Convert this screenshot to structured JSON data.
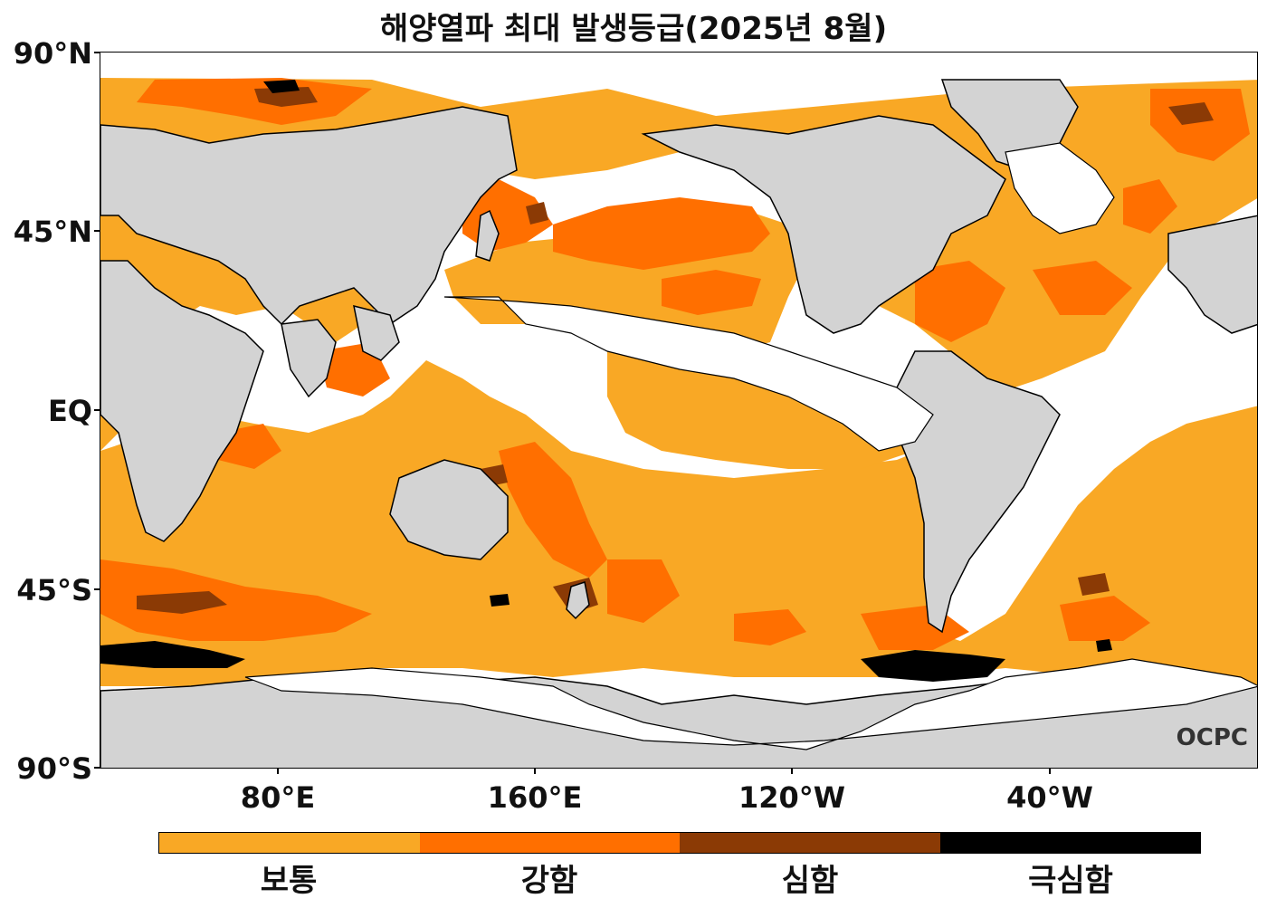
{
  "title": "해양열파 최대 발생등급(2025년 8월)",
  "lat_labels": [
    "90°N",
    "45°N",
    "EQ",
    "45°S",
    "90°S"
  ],
  "lon_labels": [
    "80°E",
    "160°E",
    "120°W",
    "40°W"
  ],
  "legend": {
    "items": [
      {
        "label": "보통",
        "color": "#F9A825"
      },
      {
        "label": "강함",
        "color": "#FF6F00"
      },
      {
        "label": "심함",
        "color": "#8B3A05"
      },
      {
        "label": "극심함",
        "color": "#000000"
      }
    ]
  },
  "logo": "OCPC",
  "colors": {
    "land": "#D3D3D3",
    "ocean_none": "#FFFFFF",
    "coast": "#000000"
  }
}
